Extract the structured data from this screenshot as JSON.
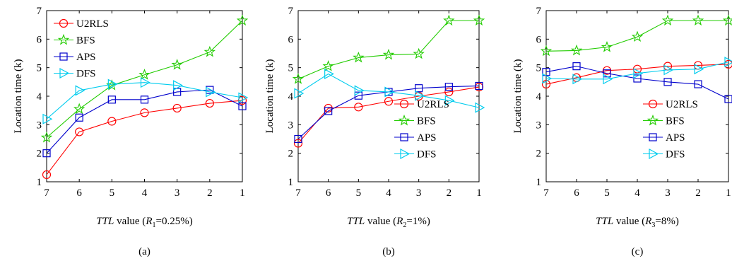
{
  "figure": {
    "colors": {
      "U2RLS": "#ff0000",
      "BFS": "#22cc00",
      "APS": "#0000cc",
      "DFS": "#00ccee"
    },
    "markers": {
      "U2RLS": "circle",
      "BFS": "star",
      "APS": "square",
      "DFS": "triangle-right"
    }
  },
  "chart_data": [
    {
      "type": "line",
      "title": "",
      "caption": "(a)",
      "xlabel": {
        "italic": "TTL",
        "text": " value (",
        "r": "R",
        "sub": "1",
        "rest": "=0.25%)"
      },
      "ylabel": "Location time (k)",
      "x": [
        7,
        6,
        5,
        4,
        3,
        2,
        1
      ],
      "xlim": [
        7,
        1
      ],
      "ylim": [
        1,
        7
      ],
      "yticks": [
        1,
        2,
        3,
        4,
        5,
        6,
        7
      ],
      "legend_position": "top-left",
      "series": [
        {
          "name": "U2RLS",
          "values": [
            1.25,
            2.75,
            3.12,
            3.42,
            3.58,
            3.75,
            3.85
          ]
        },
        {
          "name": "BFS",
          "values": [
            2.55,
            3.55,
            4.38,
            4.75,
            5.1,
            5.55,
            6.65
          ]
        },
        {
          "name": "APS",
          "values": [
            2.0,
            3.25,
            3.88,
            3.88,
            4.15,
            4.22,
            3.65
          ]
        },
        {
          "name": "DFS",
          "values": [
            3.2,
            4.2,
            4.42,
            4.48,
            4.38,
            4.15,
            3.95
          ]
        }
      ]
    },
    {
      "type": "line",
      "title": "",
      "caption": "(b)",
      "xlabel": {
        "italic": "TTL",
        "text": " value (",
        "r": "R",
        "sub": "2",
        "rest": "=1%)"
      },
      "ylabel": "Location time (k)",
      "x": [
        7,
        6,
        5,
        4,
        3,
        2,
        1
      ],
      "xlim": [
        7,
        1
      ],
      "ylim": [
        1,
        7
      ],
      "yticks": [
        1,
        2,
        3,
        4,
        5,
        6,
        7
      ],
      "legend_position": "bottom-right",
      "series": [
        {
          "name": "U2RLS",
          "values": [
            2.35,
            3.58,
            3.62,
            3.82,
            4.0,
            4.15,
            4.32
          ]
        },
        {
          "name": "BFS",
          "values": [
            4.6,
            5.05,
            5.35,
            5.45,
            5.48,
            6.65,
            6.65
          ]
        },
        {
          "name": "APS",
          "values": [
            2.5,
            3.48,
            4.02,
            4.15,
            4.28,
            4.33,
            4.36
          ]
        },
        {
          "name": "DFS",
          "values": [
            4.1,
            4.78,
            4.2,
            4.15,
            4.02,
            3.85,
            3.6
          ]
        }
      ]
    },
    {
      "type": "line",
      "title": "",
      "caption": "(c)",
      "xlabel": {
        "italic": "TTL",
        "text": " value (",
        "r": "R",
        "sub": "3",
        "rest": "=8%)"
      },
      "ylabel": "Location time (k)",
      "x": [
        7,
        6,
        5,
        4,
        3,
        2,
        1
      ],
      "xlim": [
        7,
        1
      ],
      "ylim": [
        1,
        7
      ],
      "yticks": [
        1,
        2,
        3,
        4,
        5,
        6,
        7
      ],
      "legend_position": "bottom-right",
      "series": [
        {
          "name": "U2RLS",
          "values": [
            4.42,
            4.65,
            4.9,
            4.95,
            5.05,
            5.08,
            5.12
          ]
        },
        {
          "name": "BFS",
          "values": [
            5.58,
            5.6,
            5.72,
            6.08,
            6.65,
            6.65,
            6.65
          ]
        },
        {
          "name": "APS",
          "values": [
            4.85,
            5.05,
            4.8,
            4.62,
            4.5,
            4.42,
            3.9
          ]
        },
        {
          "name": "DFS",
          "values": [
            4.62,
            4.6,
            4.6,
            4.8,
            4.92,
            4.95,
            5.2
          ]
        }
      ]
    }
  ]
}
